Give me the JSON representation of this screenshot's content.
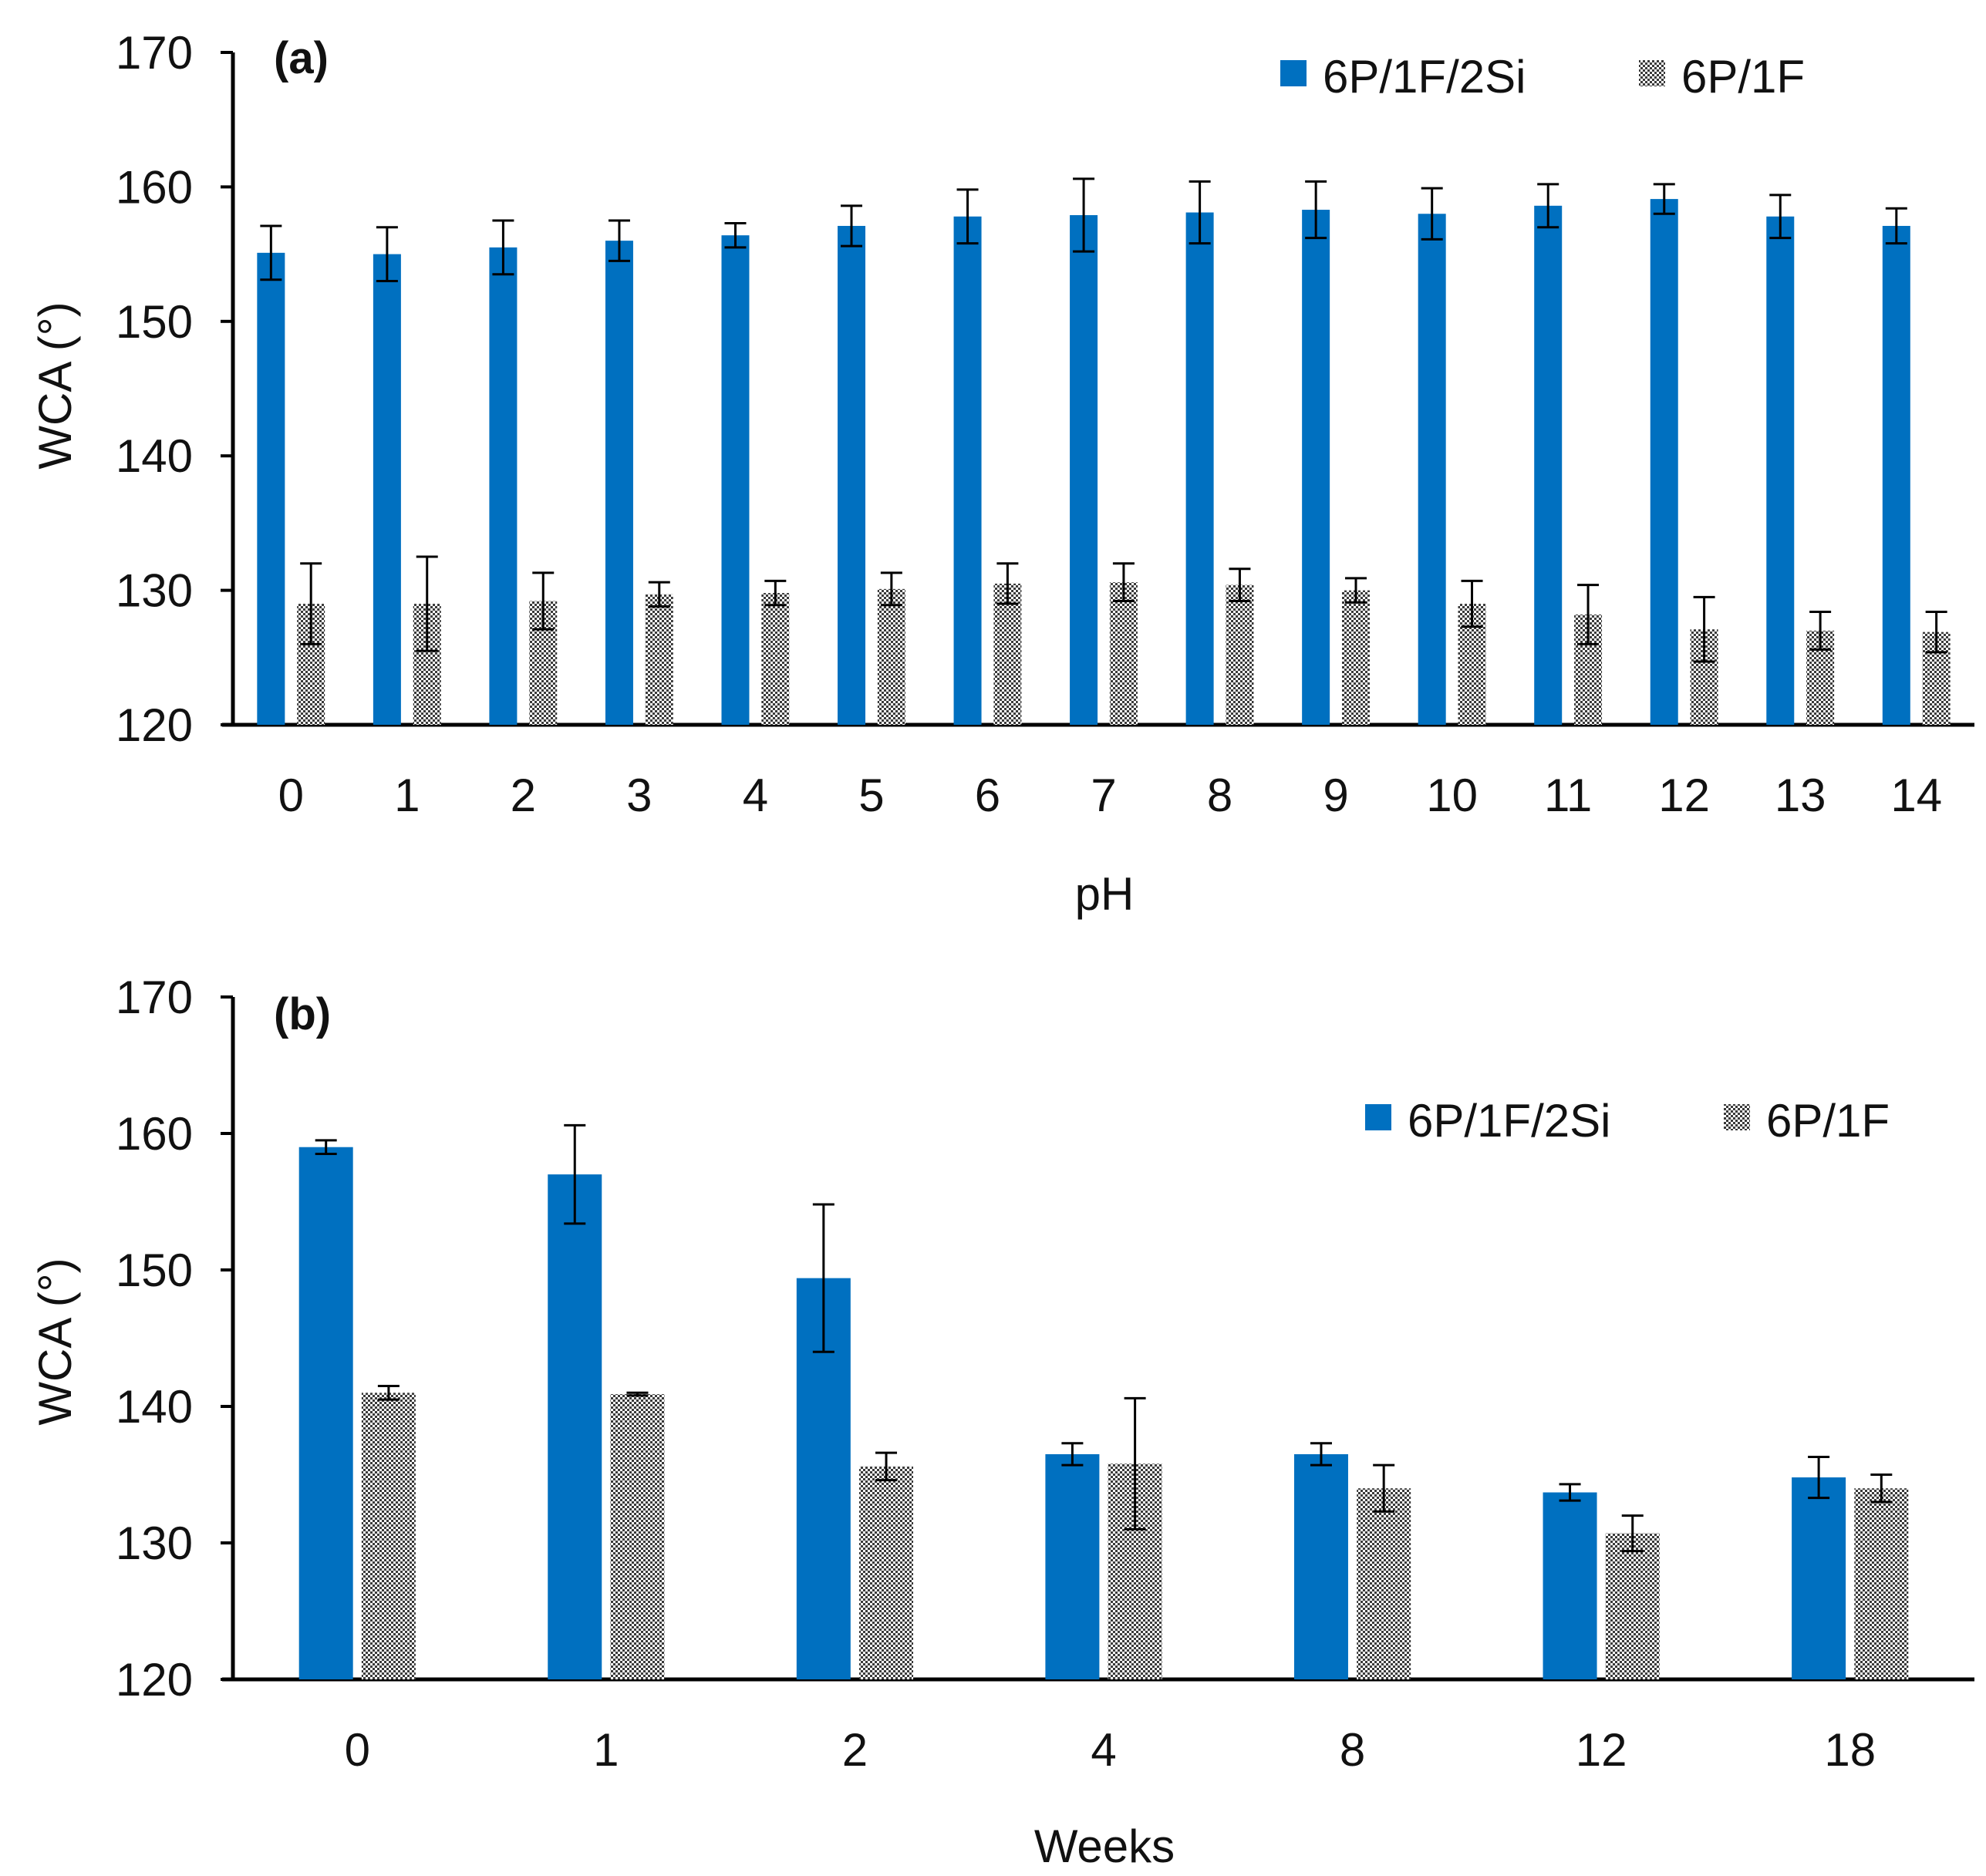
{
  "colors": {
    "series1": "#0070C0",
    "series2": "#b8b8b8",
    "axis": "#000000",
    "text": "#111111"
  },
  "chart_data": [
    {
      "type": "bar",
      "panel_label": "(a)",
      "title": "",
      "xlabel": "pH",
      "ylabel": "WCA (°)",
      "ylim": [
        120,
        170
      ],
      "yticks": [
        120,
        130,
        140,
        150,
        160,
        170
      ],
      "grid": false,
      "legend_position": "top-right",
      "categories": [
        "0",
        "1",
        "2",
        "3",
        "4",
        "5",
        "6",
        "7",
        "8",
        "9",
        "10",
        "11",
        "12",
        "13",
        "14"
      ],
      "series": [
        {
          "name": "6P/1F/2Si",
          "style": "solid",
          "values": [
            155.1,
            155.0,
            155.5,
            156.0,
            156.4,
            157.1,
            157.8,
            157.9,
            158.1,
            158.3,
            158.0,
            158.6,
            159.1,
            157.8,
            157.1
          ],
          "errors": [
            2.0,
            2.0,
            2.0,
            1.5,
            0.9,
            1.5,
            2.0,
            2.7,
            2.3,
            2.1,
            1.9,
            1.6,
            1.1,
            1.6,
            1.3
          ]
        },
        {
          "name": "6P/1F",
          "style": "pattern",
          "values": [
            129.0,
            129.0,
            129.2,
            129.7,
            129.8,
            130.1,
            130.5,
            130.6,
            130.4,
            130.0,
            129.0,
            128.2,
            127.1,
            127.0,
            126.9
          ],
          "errors": [
            3.0,
            3.5,
            2.1,
            0.9,
            0.9,
            1.2,
            1.5,
            1.4,
            1.2,
            0.9,
            1.7,
            2.2,
            2.4,
            1.4,
            1.5
          ]
        }
      ]
    },
    {
      "type": "bar",
      "panel_label": "(b)",
      "title": "",
      "xlabel": "Weeks",
      "ylabel": "WCA (°)",
      "ylim": [
        120,
        170
      ],
      "yticks": [
        120,
        130,
        140,
        150,
        160,
        170
      ],
      "grid": false,
      "legend_position": "top-right",
      "categories": [
        "0",
        "1",
        "2",
        "4",
        "8",
        "12",
        "18"
      ],
      "series": [
        {
          "name": "6P/1F/2Si",
          "style": "solid",
          "values": [
            159.0,
            157.0,
            149.4,
            136.5,
            136.5,
            133.7,
            134.8
          ],
          "errors": [
            0.5,
            3.6,
            5.4,
            0.8,
            0.8,
            0.6,
            1.5
          ]
        },
        {
          "name": "6P/1F",
          "style": "pattern",
          "values": [
            141.0,
            140.9,
            135.6,
            135.8,
            134.0,
            130.7,
            134.0
          ],
          "errors": [
            0.5,
            0.1,
            1.0,
            4.8,
            1.7,
            1.3,
            1.0
          ]
        }
      ]
    }
  ]
}
